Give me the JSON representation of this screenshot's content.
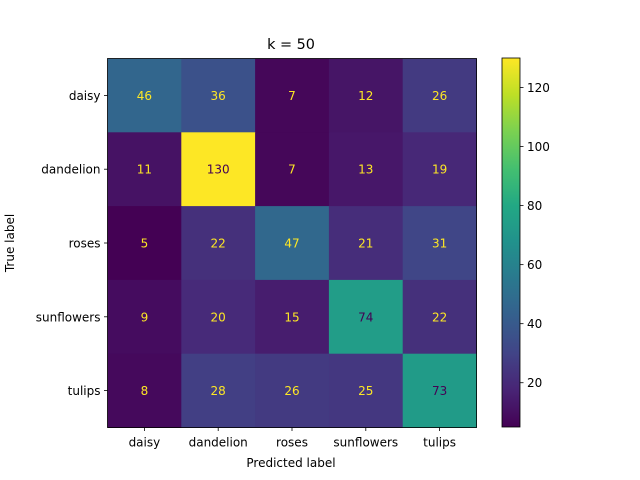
{
  "chart_data": {
    "type": "heatmap",
    "title": "k = 50",
    "xlabel": "Predicted label",
    "ylabel": "True label",
    "x_categories": [
      "daisy",
      "dandelion",
      "roses",
      "sunflowers",
      "tulips"
    ],
    "y_categories": [
      "daisy",
      "dandelion",
      "roses",
      "sunflowers",
      "tulips"
    ],
    "values": [
      [
        46,
        36,
        7,
        12,
        26
      ],
      [
        11,
        130,
        7,
        13,
        19
      ],
      [
        5,
        22,
        47,
        21,
        31
      ],
      [
        9,
        20,
        15,
        74,
        22
      ],
      [
        8,
        28,
        26,
        25,
        73
      ]
    ],
    "colormap": "viridis",
    "color_range": [
      5,
      130
    ],
    "colorbar_ticks": [
      20,
      40,
      60,
      80,
      100,
      120
    ],
    "text_color_low": "#fde725",
    "text_color_high": "#440154"
  }
}
